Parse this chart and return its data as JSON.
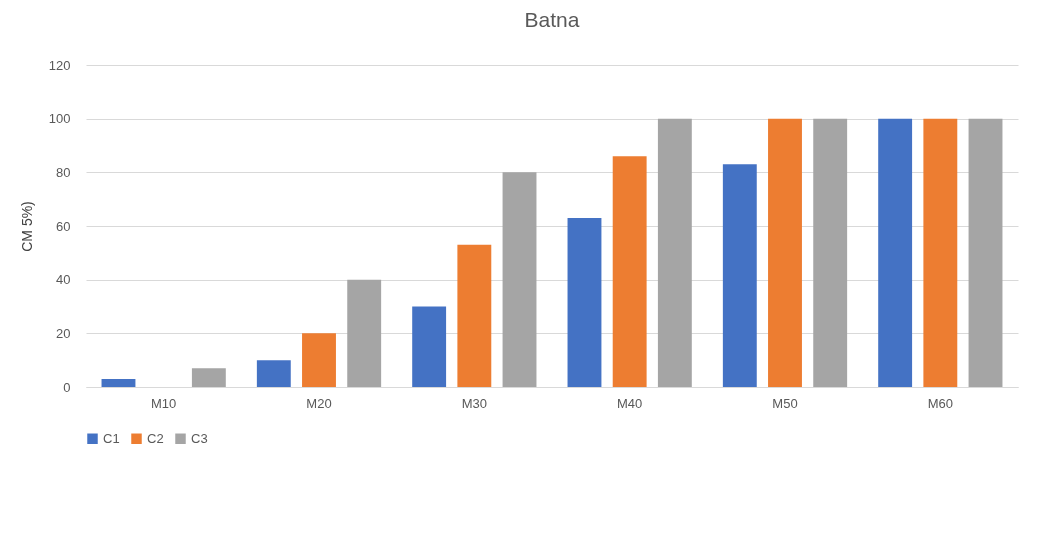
{
  "chart_data": {
    "type": "bar",
    "title": "Batna",
    "ylabel": "CM 5%)",
    "categories": [
      "M10",
      "M20",
      "M30",
      "M40",
      "M50",
      "M60"
    ],
    "series": [
      {
        "name": "C1",
        "color": "#4472c4",
        "values": [
          3,
          10,
          30,
          63,
          83,
          100
        ]
      },
      {
        "name": "C2",
        "color": "#ed7d31",
        "values": [
          0,
          20,
          53,
          86,
          100,
          100
        ]
      },
      {
        "name": "C3",
        "color": "#a5a5a5",
        "values": [
          7,
          40,
          80,
          100,
          100,
          100
        ]
      }
    ],
    "ylim": [
      0,
      120
    ],
    "yticks": [
      0,
      20,
      40,
      60,
      80,
      100,
      120
    ],
    "grid": "y",
    "legend": "bottom"
  }
}
